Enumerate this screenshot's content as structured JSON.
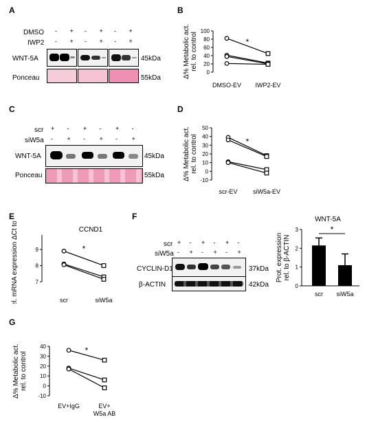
{
  "panels": {
    "A": {
      "letter": "A",
      "rows": [
        "DMSO",
        "IWP2"
      ],
      "row_signs": [
        [
          "-",
          "+",
          "-",
          "+",
          "-",
          "+"
        ],
        [
          "-",
          "+",
          "-",
          "+",
          "-",
          "+"
        ]
      ],
      "blot_label": "WNT-5A",
      "blot_kda": "45kDa",
      "ponceau_label": "Ponceau",
      "ponceau_kda": "55kDa"
    },
    "B": {
      "letter": "B",
      "star": "*"
    },
    "C": {
      "letter": "C",
      "rows": [
        "scr",
        "siW5a"
      ],
      "row_signs": [
        [
          "+",
          "-",
          "+",
          "-",
          "+",
          "-"
        ],
        [
          "-",
          "+",
          "-",
          "+",
          "-",
          "+"
        ]
      ],
      "blot_label": "WNT-5A",
      "blot_kda": "45kDa",
      "ponceau_label": "Ponceau",
      "ponceau_kda": "55kDa"
    },
    "D": {
      "letter": "D",
      "star": "*"
    },
    "E": {
      "letter": "E",
      "star": "*"
    },
    "F": {
      "letter": "F",
      "rows": [
        "scr",
        "siW5a"
      ],
      "row_signs": [
        [
          "+",
          "-",
          "+",
          "-",
          "+",
          "-"
        ],
        [
          "-",
          "+",
          "-",
          "+",
          "-",
          "+"
        ]
      ],
      "blot_label": "CYCLIN-D1",
      "blot_kda": "37kDa",
      "loading_label": "β-ACTIN",
      "loading_kda": "42kDa",
      "star": "*"
    },
    "G": {
      "letter": "G",
      "star": "*"
    }
  },
  "chart_data": [
    {
      "id": "B",
      "type": "line",
      "ylabel": "Δ% Metabolic act. rel. to control",
      "categories": [
        "DMSO-EV",
        "IWP2-EV"
      ],
      "ylim": [
        0,
        100
      ],
      "yticks": [
        0,
        20,
        40,
        60,
        80,
        100
      ],
      "series": [
        {
          "values": [
            82,
            45
          ]
        },
        {
          "values": [
            41,
            22
          ]
        },
        {
          "values": [
            38,
            20
          ]
        },
        {
          "values": [
            21,
            19
          ]
        }
      ]
    },
    {
      "id": "D",
      "type": "line",
      "ylabel": "Δ% Metabolic act. rel. to control",
      "categories": [
        "scr-EV",
        "siW5a-EV"
      ],
      "ylim": [
        -10,
        50
      ],
      "yticks": [
        -10,
        0,
        10,
        20,
        30,
        40,
        50
      ],
      "series": [
        {
          "values": [
            39,
            18
          ]
        },
        {
          "values": [
            36,
            17
          ]
        },
        {
          "values": [
            11,
            2
          ]
        },
        {
          "values": [
            10,
            -2
          ]
        }
      ]
    },
    {
      "id": "E",
      "type": "line",
      "title": "CCND1",
      "ylabel": "Rel. mRNA expression ΔCt to Hprt",
      "categories": [
        "scr",
        "siW5a"
      ],
      "ylim": [
        7,
        9.9
      ],
      "yticks": [
        7,
        8,
        9
      ],
      "series": [
        {
          "values": [
            8.9,
            8.0
          ]
        },
        {
          "values": [
            8.1,
            7.3
          ]
        },
        {
          "values": [
            8.05,
            7.15
          ]
        }
      ]
    },
    {
      "id": "F",
      "type": "bar",
      "title": "WNT-5A",
      "ylabel": "Prot. expression rel. to β-ACTIN",
      "categories": [
        "scr",
        "siW5a"
      ],
      "values": [
        2.15,
        1.1
      ],
      "errors": [
        0.4,
        0.6
      ],
      "ylim": [
        0,
        3
      ],
      "yticks": [
        0,
        1,
        2,
        3
      ]
    },
    {
      "id": "G",
      "type": "line",
      "ylabel": "Δ% Metabolic act. rel. to control",
      "categories": [
        "EV+IgG",
        "EV+ W5a AB"
      ],
      "ylim": [
        -10,
        40
      ],
      "yticks": [
        -10,
        0,
        10,
        20,
        30,
        40
      ],
      "series": [
        {
          "values": [
            36,
            26
          ]
        },
        {
          "values": [
            18,
            6
          ]
        },
        {
          "values": [
            17,
            -2
          ]
        }
      ]
    }
  ]
}
